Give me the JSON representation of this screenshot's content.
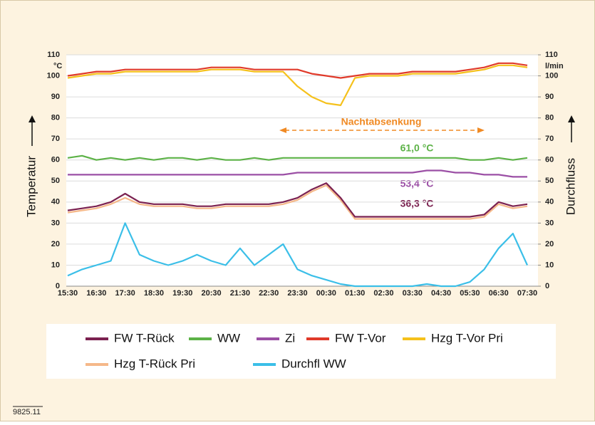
{
  "chart_data": {
    "type": "line",
    "y_label": "Temperatur",
    "y2_label": "Durchfluss",
    "y_unit": "°C",
    "y2_unit": "l/min",
    "categories": [
      "15:30",
      null,
      "16:30",
      null,
      "17:30",
      null,
      "18:30",
      null,
      "19:30",
      null,
      "20:30",
      null,
      "21:30",
      null,
      "22:30",
      null,
      "23:30",
      null,
      "00:30",
      null,
      "01:30",
      null,
      "02:30",
      null,
      "03:30",
      null,
      "04:30",
      null,
      "05:30",
      null,
      "06:30",
      null,
      "07:30"
    ],
    "ylim": [
      0,
      110
    ],
    "yticks": [
      0,
      10,
      20,
      30,
      40,
      50,
      60,
      70,
      80,
      90,
      100,
      110
    ],
    "y2lim": [
      0,
      110
    ],
    "y2ticks": [
      0,
      10,
      20,
      30,
      40,
      50,
      60,
      70,
      80,
      90,
      100,
      110
    ],
    "grid": true,
    "series": [
      {
        "name": "Durchfl WW",
        "color": "#3bbfe8",
        "axis": "y2",
        "values": [
          5,
          8,
          10,
          12,
          30,
          15,
          12,
          10,
          12,
          15,
          12,
          10,
          18,
          10,
          15,
          20,
          8,
          5,
          3,
          1,
          0,
          0,
          0,
          0,
          0,
          1,
          0,
          0,
          2,
          8,
          18,
          25,
          10
        ]
      },
      {
        "name": "Hzg T-Rück Pri",
        "color": "#f5b889",
        "values": [
          35,
          36,
          37,
          39,
          42,
          39,
          38,
          38,
          38,
          37,
          37,
          38,
          38,
          38,
          38,
          39,
          41,
          45,
          48,
          41,
          32,
          32,
          32,
          32,
          32,
          32,
          32,
          32,
          32,
          33,
          39,
          37,
          38
        ]
      },
      {
        "name": "FW T-Rück",
        "color": "#7b2150",
        "values": [
          36,
          37,
          38,
          40,
          44,
          40,
          39,
          39,
          39,
          38,
          38,
          39,
          39,
          39,
          39,
          40,
          42,
          46,
          49,
          42,
          33,
          33,
          33,
          33,
          33,
          33,
          33,
          33,
          33,
          34,
          40,
          38,
          39
        ]
      },
      {
        "name": "WW",
        "color": "#5cb247",
        "values": [
          61,
          62,
          60,
          61,
          60,
          61,
          60,
          61,
          61,
          60,
          61,
          60,
          60,
          61,
          60,
          61,
          61,
          61,
          61,
          61,
          61,
          61,
          61,
          61,
          61,
          61,
          61,
          61,
          60,
          60,
          61,
          60,
          61
        ]
      },
      {
        "name": "Zi",
        "color": "#9b4fa5",
        "values": [
          53,
          53,
          53,
          53,
          53,
          53,
          53,
          53,
          53,
          53,
          53,
          53,
          53,
          53,
          53,
          53,
          54,
          54,
          54,
          54,
          54,
          54,
          54,
          54,
          54,
          55,
          55,
          54,
          54,
          53,
          53,
          52,
          52
        ]
      },
      {
        "name": "Hzg T-Vor Pri",
        "color": "#f5c11b",
        "values": [
          99,
          100,
          101,
          101,
          102,
          102,
          102,
          102,
          102,
          102,
          103,
          103,
          103,
          102,
          102,
          102,
          95,
          90,
          87,
          86,
          99,
          100,
          100,
          100,
          101,
          101,
          101,
          101,
          102,
          103,
          105,
          105,
          104
        ]
      },
      {
        "name": "FW T-Vor",
        "color": "#e03a2a",
        "values": [
          100,
          101,
          102,
          102,
          103,
          103,
          103,
          103,
          103,
          103,
          104,
          104,
          104,
          103,
          103,
          103,
          103,
          101,
          100,
          99,
          100,
          101,
          101,
          101,
          102,
          102,
          102,
          102,
          103,
          104,
          106,
          106,
          105
        ]
      }
    ],
    "annotations": [
      "Nachtabsenkung",
      "61,0 °C",
      "53,4 °C",
      "36,3 °C"
    ],
    "footnote": "9825.11"
  }
}
